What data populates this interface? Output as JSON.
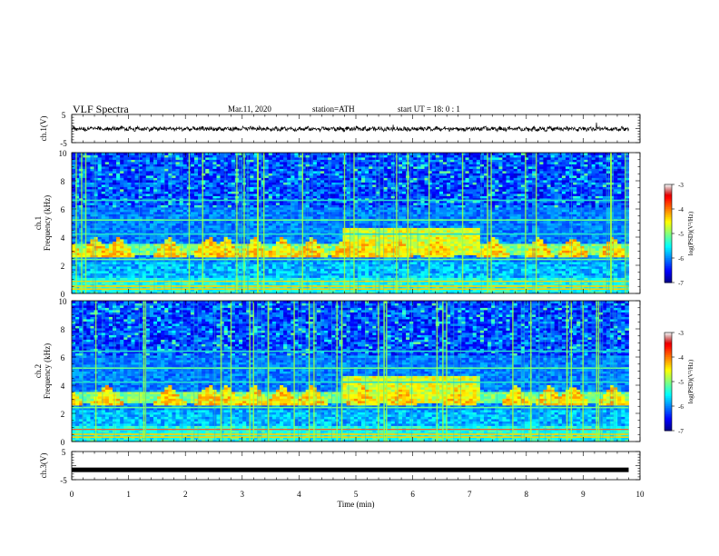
{
  "header": {
    "title": "VLF  Spectra",
    "date": "Mar.11, 2020",
    "station": "station=ATH",
    "start": "start  UT  =    18: 0   : 1"
  },
  "chart_data": [
    {
      "type": "line",
      "panel": "ch1-waveform",
      "ylabel": "ch.1(V)",
      "ylim": [
        -5,
        5
      ],
      "yticks": [
        "5",
        "-5"
      ],
      "xlim": [
        0,
        10
      ],
      "series": [
        {
          "color": "#000000"
        }
      ]
    },
    {
      "type": "heatmap",
      "panel": "ch1-spectrogram",
      "ylabel": "ch.1  Frequency (kHz)",
      "ylim": [
        0,
        10
      ],
      "yticks": [
        "0",
        "2",
        "4",
        "6",
        "8",
        "10"
      ],
      "xlim": [
        0,
        10
      ],
      "colorbar": {
        "label": "log(PSD)(V²/Hz)",
        "ticks": [
          "-3",
          "-4",
          "-5",
          "-6",
          "-7"
        ],
        "range": [
          -7,
          -3
        ]
      },
      "hiss_bursts_min": [
        0.1,
        0.6,
        1.0,
        1.9,
        2.6,
        2.9,
        3.4,
        3.9,
        4.4,
        5.0,
        5.3,
        5.9,
        6.6,
        7.6,
        8.4,
        9.0,
        9.7
      ],
      "line_frequencies_kHz": [
        0.3,
        0.5,
        2.4,
        4.2,
        5.2,
        6.6
      ]
    },
    {
      "type": "heatmap",
      "panel": "ch2-spectrogram",
      "ylabel": "ch.2  Frequency (kHz)",
      "ylim": [
        0,
        10
      ],
      "yticks": [
        "0",
        "2",
        "4",
        "6",
        "8",
        "10"
      ],
      "xlim": [
        0,
        10
      ],
      "colorbar": {
        "label": "log(PSD)(V²/Hz)",
        "ticks": [
          "-3",
          "-4",
          "-5",
          "-6",
          "-7"
        ],
        "range": [
          -7,
          -3
        ]
      },
      "hiss_bursts_min": [
        0.1,
        0.8,
        1.9,
        2.6,
        2.9,
        3.4,
        3.9,
        4.4,
        5.3,
        6.0,
        7.0,
        8.0,
        8.6,
        9.0,
        9.7
      ],
      "line_frequencies_kHz": [
        0.3,
        0.5,
        2.4,
        4.2,
        5.2,
        6.4
      ]
    },
    {
      "type": "line",
      "panel": "ch3-waveform",
      "ylabel": "ch.3(V)",
      "ylim": [
        -5,
        5
      ],
      "yticks": [
        "5",
        "-5"
      ],
      "xlim": [
        0,
        10
      ],
      "xlabel": "Time  (min)",
      "xticks": [
        "0",
        "1",
        "2",
        "3",
        "4",
        "5",
        "6",
        "7",
        "8",
        "9",
        "10"
      ],
      "series": [
        {
          "color": "#000000",
          "constant": -1.5
        }
      ]
    }
  ]
}
